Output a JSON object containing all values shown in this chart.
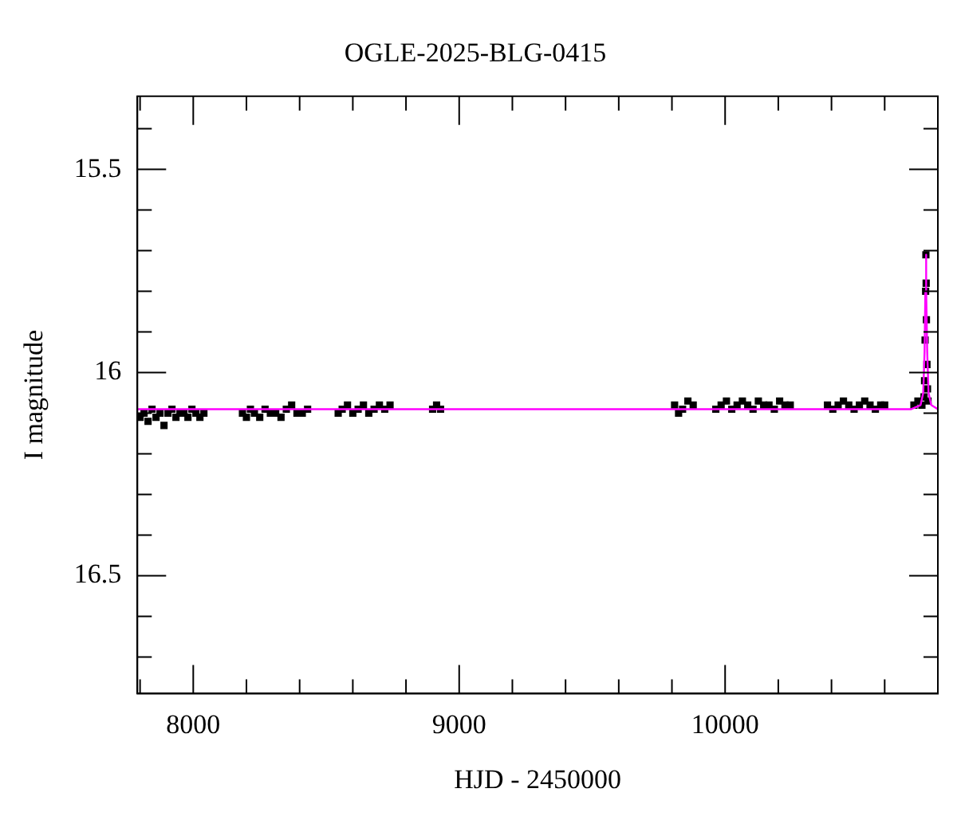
{
  "chart_data": {
    "type": "scatter",
    "title": "OGLE-2025-BLG-0415",
    "xlabel": "HJD - 2450000",
    "ylabel": "I magnitude",
    "xlim": [
      7790,
      10800
    ],
    "xticks": [
      8000,
      9000,
      10000
    ],
    "ylim": [
      16.79,
      15.32
    ],
    "yticks": [
      15.5,
      16,
      16.5
    ],
    "grid": false,
    "legend": false,
    "marker": "square",
    "series": [
      {
        "color": "#000000",
        "x": [
          7800,
          7815,
          7830,
          7845,
          7860,
          7875,
          7890,
          7905,
          7920,
          7935,
          7950,
          7965,
          7980,
          7995,
          8010,
          8025,
          8040,
          8185,
          8200,
          8215,
          8230,
          8250,
          8270,
          8290,
          8310,
          8330,
          8350,
          8370,
          8390,
          8410,
          8430,
          8545,
          8560,
          8580,
          8600,
          8620,
          8640,
          8660,
          8680,
          8700,
          8720,
          8740,
          8900,
          8915,
          8930,
          9810,
          9825,
          9840,
          9860,
          9880,
          9965,
          9985,
          10005,
          10025,
          10045,
          10065,
          10085,
          10105,
          10125,
          10145,
          10165,
          10185,
          10205,
          10225,
          10245,
          10385,
          10405,
          10425,
          10445,
          10465,
          10485,
          10505,
          10525,
          10545,
          10565,
          10585,
          10600,
          10710,
          10725,
          10740
        ],
        "values": [
          16.11,
          16.1,
          16.12,
          16.09,
          16.11,
          16.1,
          16.13,
          16.1,
          16.09,
          16.11,
          16.1,
          16.1,
          16.11,
          16.09,
          16.1,
          16.11,
          16.1,
          16.1,
          16.11,
          16.09,
          16.1,
          16.11,
          16.09,
          16.1,
          16.1,
          16.11,
          16.09,
          16.08,
          16.1,
          16.1,
          16.09,
          16.1,
          16.09,
          16.08,
          16.1,
          16.09,
          16.08,
          16.1,
          16.09,
          16.08,
          16.09,
          16.08,
          16.09,
          16.08,
          16.09,
          16.08,
          16.1,
          16.09,
          16.07,
          16.08,
          16.09,
          16.08,
          16.07,
          16.09,
          16.08,
          16.07,
          16.08,
          16.09,
          16.07,
          16.08,
          16.08,
          16.09,
          16.07,
          16.08,
          16.08,
          16.08,
          16.09,
          16.08,
          16.07,
          16.08,
          16.09,
          16.08,
          16.07,
          16.08,
          16.09,
          16.08,
          16.08,
          16.08,
          16.07,
          16.08
        ]
      },
      {
        "color": "#000000",
        "x": [
          10748,
          10750,
          10752,
          10754,
          10755,
          10756,
          10757,
          10759,
          10761,
          10763
        ],
        "values": [
          16.06,
          16.02,
          15.92,
          15.8,
          15.71,
          15.78,
          15.87,
          15.98,
          16.04,
          16.07
        ]
      },
      {
        "type": "line",
        "color": "#ff00ff",
        "marker": "none",
        "x": [
          7790,
          10700,
          10735,
          10745,
          10750,
          10753,
          10755,
          10757,
          10760,
          10765,
          10775,
          10800
        ],
        "values": [
          16.09,
          16.09,
          16.08,
          16.05,
          15.95,
          15.8,
          15.71,
          15.8,
          15.95,
          16.05,
          16.08,
          16.09
        ]
      }
    ]
  }
}
